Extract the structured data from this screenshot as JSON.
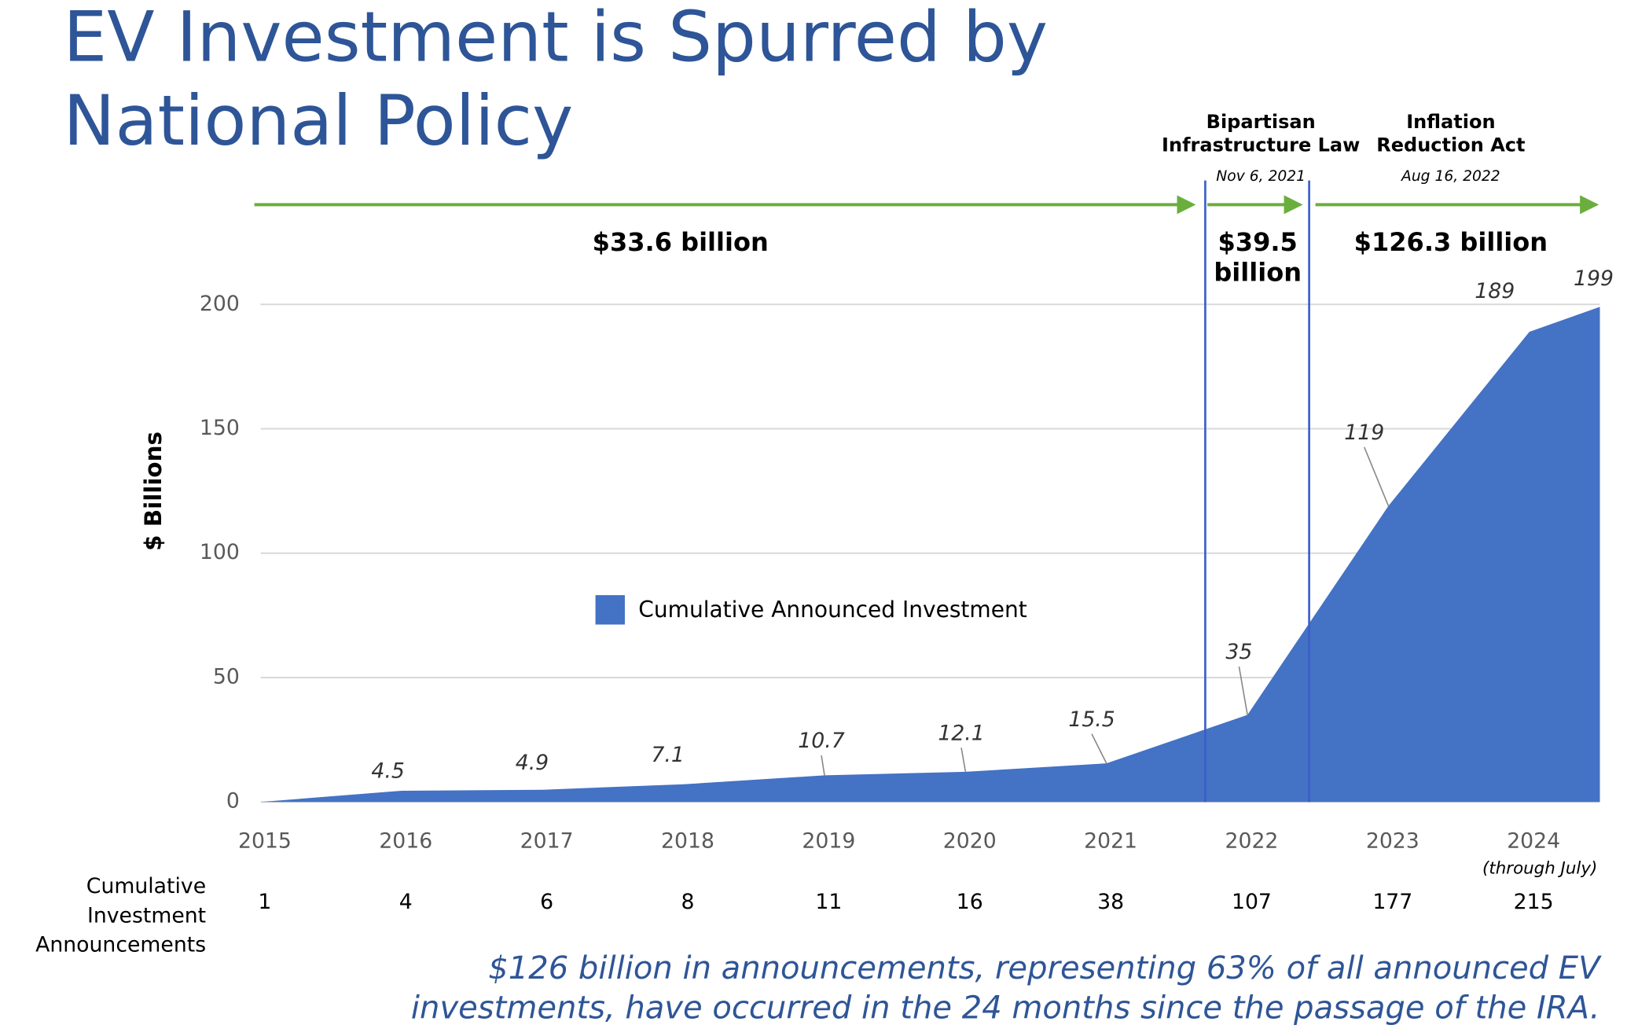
{
  "chart_data": {
    "type": "area",
    "title_lines": [
      "EV Investment is Spurred by",
      "National Policy"
    ],
    "y_label": "$ Billions",
    "x": [
      2015,
      2016,
      2017,
      2018,
      2019,
      2020,
      2021,
      2022,
      2023,
      2024,
      2024.5
    ],
    "series": [
      {
        "name": "Cumulative Announced Investment",
        "color": "#4472c4",
        "values": [
          0,
          4.5,
          4.9,
          7.1,
          10.7,
          12.1,
          15.5,
          35,
          119,
          189,
          199
        ]
      }
    ],
    "xlim": [
      2015,
      2024.5
    ],
    "xticks": [
      2015,
      2016,
      2017,
      2018,
      2019,
      2020,
      2021,
      2022,
      2023,
      2024
    ],
    "ylim": [
      0,
      200
    ],
    "yticks": [
      0,
      50,
      100,
      150,
      200
    ],
    "grid": true,
    "x_note": "(through July)",
    "announcements": {
      "label_lines": [
        "Cumulative",
        "Investment",
        "Announcements"
      ],
      "counts": [
        1,
        4,
        6,
        8,
        11,
        16,
        38,
        107,
        177,
        215
      ]
    },
    "laws": [
      {
        "name_lines": [
          "Bipartisan",
          "Infrastructure Law"
        ],
        "date": "Nov 6, 2021"
      },
      {
        "name_lines": [
          "Inflation",
          "Reduction Act"
        ],
        "date": "Aug 16, 2022"
      }
    ],
    "periods": [
      {
        "lines": [
          "$33.6 billion"
        ]
      },
      {
        "lines": [
          "$39.5",
          "billion"
        ]
      },
      {
        "lines": [
          "$126.3 billion"
        ]
      }
    ],
    "note_lines": [
      "$126 billion in announcements, representing 63% of all announced EV",
      "investments, have occurred in the 24 months since the passage of the IRA."
    ]
  }
}
